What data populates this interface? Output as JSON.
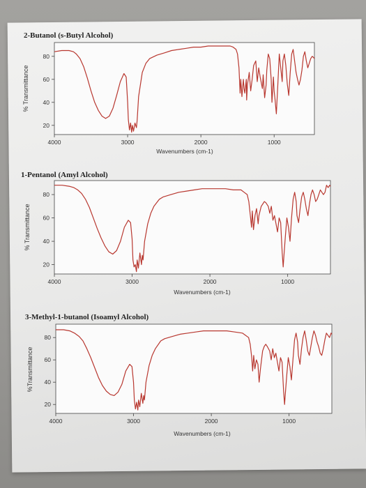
{
  "chart_data": [
    {
      "type": "line",
      "title": "2-Butanol (s-Butyl Alcohol)",
      "xlabel": "Wavenumbers (cm-1)",
      "ylabel": "% Transmittance",
      "xlim": [
        4000,
        450
      ],
      "ylim": [
        12,
        92
      ],
      "xticks": [
        4000,
        3000,
        2000,
        1000
      ],
      "yticks": [
        80,
        60,
        40,
        20
      ],
      "series": [
        {
          "x": [
            4000,
            3900,
            3800,
            3740,
            3700,
            3650,
            3600,
            3550,
            3500,
            3450,
            3400,
            3350,
            3300,
            3250,
            3200,
            3150,
            3100,
            3050,
            3020,
            3000,
            2990,
            2975,
            2960,
            2945,
            2935,
            2920,
            2900,
            2880,
            2870,
            2850,
            2800,
            2750,
            2700,
            2600,
            2500,
            2400,
            2300,
            2200,
            2100,
            2000,
            1900,
            1800,
            1700,
            1600,
            1560,
            1520,
            1500,
            1480,
            1465,
            1455,
            1440,
            1420,
            1410,
            1400,
            1380,
            1375,
            1365,
            1340,
            1320,
            1300,
            1280,
            1250,
            1230,
            1210,
            1190,
            1160,
            1150,
            1130,
            1110,
            1100,
            1080,
            1060,
            1040,
            1030,
            1010,
            1000,
            990,
            970,
            950,
            930,
            910,
            890,
            880,
            860,
            840,
            820,
            800,
            780,
            760,
            740,
            720,
            700,
            680,
            660,
            640,
            620,
            600,
            580,
            560,
            540,
            520,
            500,
            480,
            460,
            450
          ],
          "y": [
            84,
            85,
            85,
            84,
            82,
            78,
            71,
            61,
            50,
            40,
            33,
            28,
            26,
            28,
            35,
            46,
            58,
            65,
            62,
            40,
            25,
            16,
            22,
            14,
            20,
            15,
            22,
            18,
            24,
            45,
            66,
            74,
            78,
            81,
            83,
            85,
            86,
            87,
            88,
            88,
            89,
            89,
            89,
            89,
            88,
            86,
            82,
            70,
            48,
            60,
            45,
            60,
            52,
            48,
            60,
            42,
            55,
            66,
            50,
            60,
            72,
            76,
            58,
            70,
            62,
            52,
            64,
            44,
            55,
            68,
            82,
            78,
            60,
            40,
            62,
            50,
            44,
            30,
            55,
            82,
            70,
            58,
            76,
            82,
            72,
            56,
            46,
            66,
            82,
            86,
            76,
            66,
            60,
            55,
            60,
            68,
            80,
            84,
            76,
            70,
            74,
            78,
            80,
            79,
            78
          ]
        }
      ]
    },
    {
      "type": "line",
      "title": "1-Pentanol (Amyl Alcohol)",
      "xlabel": "Wavenumbers (cm-1)",
      "ylabel": "% Transmittance",
      "xlim": [
        4000,
        450
      ],
      "ylim": [
        12,
        92
      ],
      "xticks": [
        4000,
        3000,
        2000,
        1000
      ],
      "yticks": [
        80,
        60,
        40,
        20
      ],
      "series": [
        {
          "x": [
            4000,
            3900,
            3800,
            3750,
            3700,
            3650,
            3600,
            3550,
            3500,
            3450,
            3400,
            3350,
            3300,
            3250,
            3200,
            3150,
            3100,
            3050,
            3020,
            3000,
            2990,
            2975,
            2960,
            2945,
            2935,
            2920,
            2900,
            2880,
            2870,
            2860,
            2840,
            2800,
            2760,
            2720,
            2650,
            2600,
            2500,
            2400,
            2300,
            2200,
            2100,
            2000,
            1900,
            1800,
            1700,
            1600,
            1560,
            1520,
            1500,
            1480,
            1465,
            1455,
            1440,
            1420,
            1400,
            1380,
            1370,
            1340,
            1320,
            1300,
            1280,
            1250,
            1230,
            1210,
            1190,
            1170,
            1150,
            1130,
            1110,
            1090,
            1070,
            1058,
            1050,
            1030,
            1010,
            990,
            970,
            950,
            930,
            910,
            890,
            880,
            860,
            840,
            820,
            800,
            780,
            760,
            740,
            720,
            700,
            680,
            660,
            640,
            620,
            600,
            580,
            560,
            540,
            520,
            500,
            480,
            460,
            450
          ],
          "y": [
            88,
            88,
            87,
            86,
            84,
            81,
            76,
            69,
            60,
            51,
            43,
            36,
            31,
            29,
            32,
            40,
            52,
            58,
            56,
            42,
            24,
            18,
            20,
            14,
            24,
            17,
            30,
            20,
            28,
            24,
            40,
            55,
            64,
            70,
            76,
            78,
            80,
            82,
            83,
            84,
            85,
            85,
            85,
            85,
            84,
            84,
            82,
            80,
            74,
            62,
            52,
            66,
            50,
            62,
            68,
            55,
            62,
            70,
            72,
            74,
            73,
            70,
            64,
            70,
            58,
            62,
            55,
            48,
            60,
            56,
            30,
            18,
            26,
            44,
            60,
            52,
            40,
            60,
            76,
            82,
            74,
            62,
            56,
            68,
            78,
            82,
            76,
            68,
            62,
            72,
            80,
            84,
            80,
            74,
            76,
            80,
            84,
            82,
            80,
            82,
            88,
            86,
            88,
            87
          ]
        }
      ]
    },
    {
      "type": "line",
      "title": "3-Methyl-1-butanol (Isoamyl Alcohol)",
      "xlabel": "Wavenumbers (cm-1)",
      "ylabel": "%Transmittance",
      "xlim": [
        4000,
        450
      ],
      "ylim": [
        12,
        92
      ],
      "xticks": [
        4000,
        3000,
        2000,
        1000
      ],
      "yticks": [
        80,
        60,
        40,
        20
      ],
      "series": [
        {
          "x": [
            4000,
            3900,
            3820,
            3760,
            3700,
            3650,
            3600,
            3550,
            3500,
            3450,
            3400,
            3350,
            3300,
            3250,
            3200,
            3150,
            3100,
            3050,
            3020,
            3000,
            2990,
            2975,
            2960,
            2945,
            2935,
            2920,
            2900,
            2880,
            2870,
            2860,
            2840,
            2800,
            2760,
            2720,
            2650,
            2600,
            2500,
            2400,
            2300,
            2200,
            2100,
            2000,
            1900,
            1800,
            1700,
            1600,
            1560,
            1520,
            1500,
            1480,
            1468,
            1455,
            1440,
            1420,
            1400,
            1385,
            1368,
            1340,
            1320,
            1300,
            1280,
            1250,
            1230,
            1210,
            1190,
            1170,
            1150,
            1130,
            1110,
            1090,
            1070,
            1058,
            1050,
            1030,
            1010,
            990,
            970,
            950,
            930,
            910,
            890,
            880,
            860,
            840,
            820,
            800,
            780,
            760,
            740,
            720,
            700,
            680,
            660,
            640,
            620,
            600,
            580,
            560,
            540,
            520,
            500,
            480,
            460,
            450
          ],
          "y": [
            87,
            87,
            86,
            84,
            81,
            77,
            70,
            62,
            53,
            44,
            37,
            32,
            29,
            28,
            31,
            38,
            50,
            56,
            54,
            40,
            24,
            16,
            22,
            15,
            24,
            18,
            30,
            21,
            28,
            24,
            40,
            55,
            64,
            70,
            77,
            79,
            81,
            83,
            84,
            85,
            86,
            86,
            86,
            86,
            85,
            84,
            82,
            80,
            74,
            62,
            50,
            64,
            52,
            60,
            56,
            40,
            52,
            68,
            72,
            74,
            72,
            68,
            60,
            70,
            62,
            66,
            58,
            50,
            62,
            58,
            32,
            20,
            28,
            46,
            62,
            54,
            42,
            60,
            78,
            84,
            76,
            64,
            56,
            70,
            80,
            86,
            78,
            68,
            64,
            72,
            80,
            86,
            82,
            76,
            72,
            66,
            64,
            70,
            78,
            84,
            82,
            80,
            84,
            83
          ]
        }
      ]
    }
  ]
}
